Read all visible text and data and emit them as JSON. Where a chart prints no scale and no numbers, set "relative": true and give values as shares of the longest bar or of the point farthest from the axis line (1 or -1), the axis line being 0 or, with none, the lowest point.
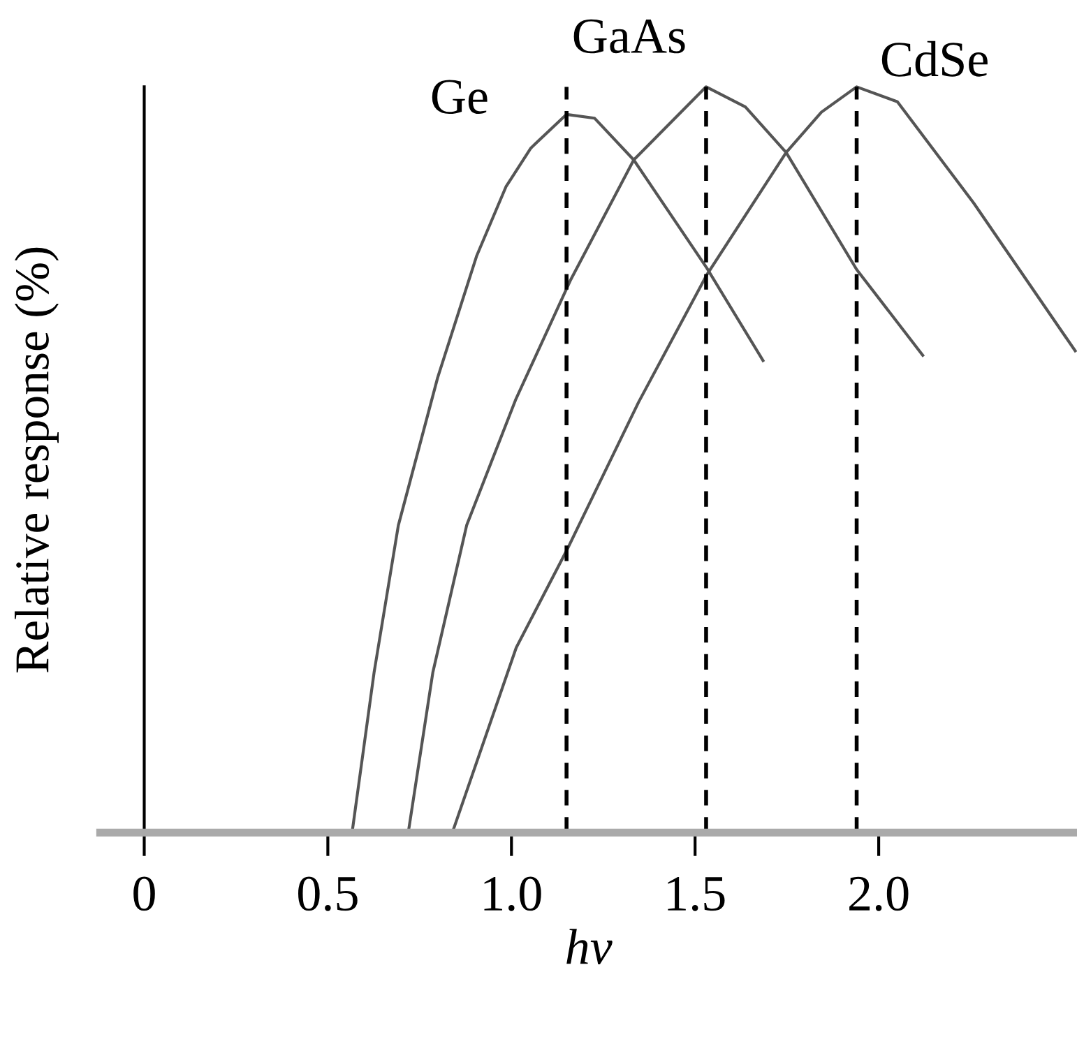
{
  "chart_data": {
    "type": "line",
    "relative": true,
    "xlabel": "hν",
    "ylabel": "Relative response (%)",
    "xlim": [
      -0.12,
      2.54
    ],
    "xticks": [
      0,
      0.5,
      {
        "value": 1.0,
        "label": "1.0"
      },
      1.5,
      {
        "value": 2.0,
        "label": "2.0"
      }
    ],
    "legend": false,
    "marker": "none",
    "line_style": "solid",
    "series": [
      {
        "name": "Ge",
        "color": "#555555",
        "x": [
          0.566,
          0.626,
          0.692,
          0.799,
          0.905,
          0.985,
          1.053,
          1.15,
          1.226,
          1.333,
          1.532,
          1.685
        ],
        "values": [
          0,
          0.215,
          0.412,
          0.61,
          0.773,
          0.866,
          0.918,
          0.963,
          0.958,
          0.902,
          0.757,
          0.633
        ]
      },
      {
        "name": "GaAs",
        "color": "#555555",
        "x": [
          0.719,
          0.786,
          0.878,
          1.011,
          1.16,
          1.333,
          1.53,
          1.637,
          1.748,
          1.94,
          2.12
        ],
        "values": [
          0,
          0.215,
          0.412,
          0.58,
          0.74,
          0.902,
          1.0,
          0.973,
          0.912,
          0.755,
          0.64
        ]
      },
      {
        "name": "CdSe",
        "color": "#555555",
        "x": [
          0.839,
          1.013,
          1.152,
          1.346,
          1.532,
          1.748,
          1.844,
          1.94,
          2.051,
          2.259,
          2.535
        ],
        "values": [
          0,
          0.248,
          0.38,
          0.577,
          0.748,
          0.912,
          0.966,
          1.0,
          0.98,
          0.844,
          0.646
        ]
      }
    ],
    "ref_lines": [
      {
        "axis": "x",
        "value": 1.15,
        "color": "#000000",
        "line_style": "dashed"
      },
      {
        "axis": "x",
        "value": 1.53,
        "color": "#000000",
        "line_style": "dashed"
      },
      {
        "axis": "x",
        "value": 1.94,
        "color": "#000000",
        "line_style": "dashed"
      }
    ]
  }
}
